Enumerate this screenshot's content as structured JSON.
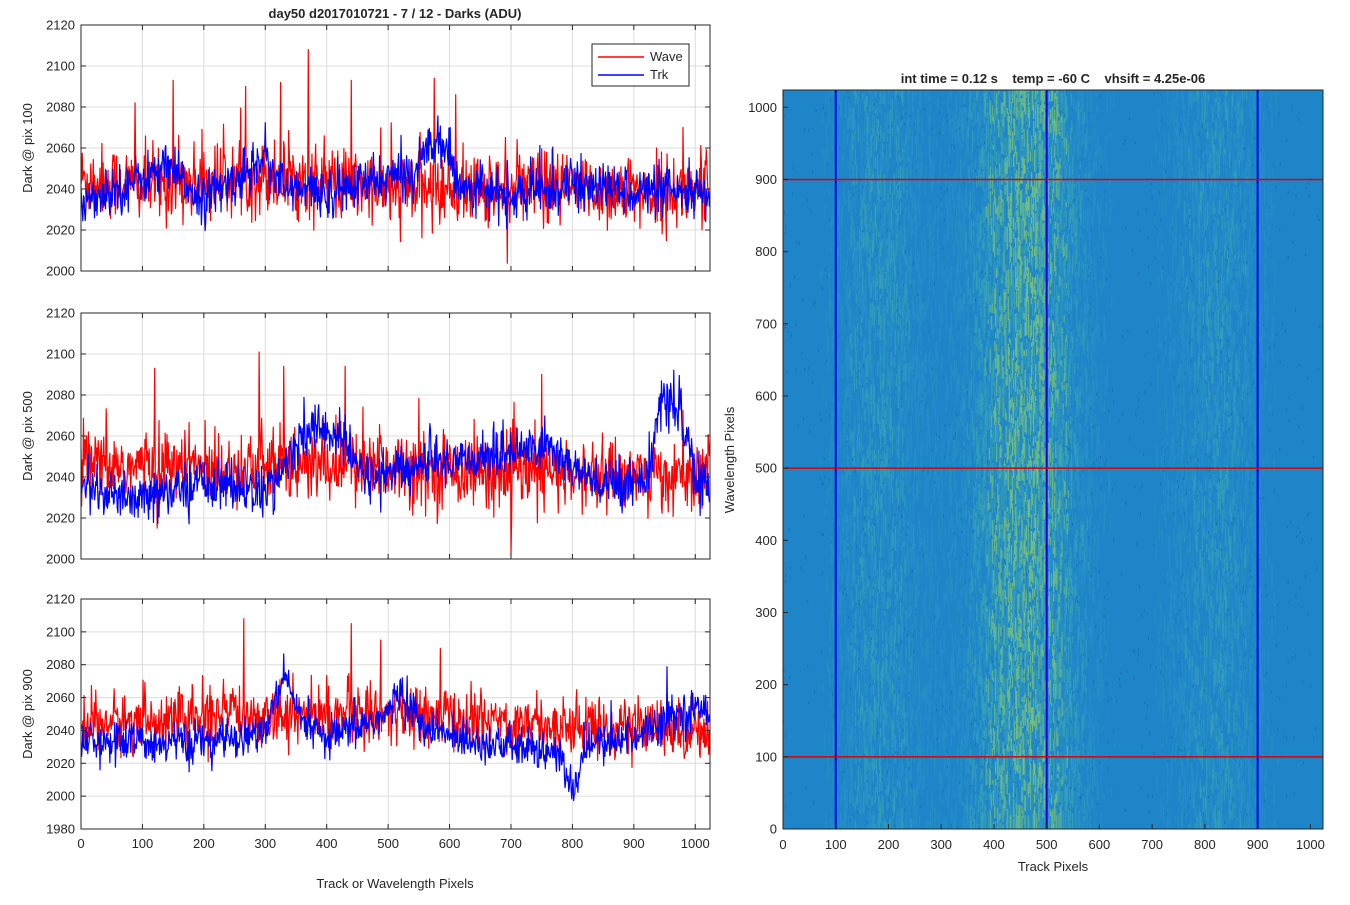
{
  "figure": {
    "colors": {
      "wave": "#ff0000",
      "trk": "#0000ff",
      "axis": "#262626",
      "grid": "#dcdcdc",
      "image_base": "#1e86c8",
      "image_bright": "#58c09a",
      "marker_line_v": "#0000e6",
      "marker_line_h": "#e00000"
    }
  },
  "chart_data": [
    {
      "type": "line",
      "title": "day50 d2017010721 - 7 / 12 - Darks (ADU)",
      "xlabel": "",
      "ylabel": "Dark @ pix 100",
      "xlim": [
        0,
        1024
      ],
      "ylim": [
        2000,
        2120
      ],
      "yticks": [
        2000,
        2020,
        2040,
        2060,
        2080,
        2100,
        2120
      ],
      "xticks": [
        0,
        100,
        200,
        300,
        400,
        500,
        600,
        700,
        800,
        900,
        1000
      ],
      "show_xtick_labels": false,
      "grid": true,
      "legend": {
        "placement": "top-right",
        "entries": [
          "Wave",
          "Trk"
        ]
      },
      "series": [
        {
          "name": "Wave",
          "color": "#ff0000",
          "baseline": 2042,
          "noise_sd": 9,
          "spikes": [
            [
              88,
              2082
            ],
            [
              150,
              2093
            ],
            [
              268,
              2090
            ],
            [
              325,
              2092
            ],
            [
              370,
              2108
            ],
            [
              440,
              2093
            ],
            [
              575,
              2094
            ],
            [
              610,
              2086
            ],
            [
              980,
              2070
            ]
          ],
          "segments": [
            [
              0,
              2045
            ],
            [
              100,
              2042
            ],
            [
              300,
              2046
            ],
            [
              500,
              2040
            ],
            [
              700,
              2040
            ],
            [
              1024,
              2038
            ]
          ]
        },
        {
          "name": "Trk",
          "color": "#0000ff",
          "baseline": 2036,
          "noise_sd": 6,
          "segments": [
            [
              0,
              2035
            ],
            [
              60,
              2040
            ],
            [
              140,
              2050
            ],
            [
              200,
              2035
            ],
            [
              270,
              2048
            ],
            [
              300,
              2058
            ],
            [
              330,
              2040
            ],
            [
              400,
              2038
            ],
            [
              540,
              2048
            ],
            [
              580,
              2068
            ],
            [
              620,
              2042
            ],
            [
              700,
              2036
            ],
            [
              800,
              2042
            ],
            [
              1024,
              2036
            ]
          ]
        }
      ]
    },
    {
      "type": "line",
      "title": "",
      "xlabel": "",
      "ylabel": "Dark @ pix 500",
      "xlim": [
        0,
        1024
      ],
      "ylim": [
        2000,
        2120
      ],
      "yticks": [
        2000,
        2020,
        2040,
        2060,
        2080,
        2100,
        2120
      ],
      "xticks": [
        0,
        100,
        200,
        300,
        400,
        500,
        600,
        700,
        800,
        900,
        1000
      ],
      "show_xtick_labels": false,
      "grid": true,
      "series": [
        {
          "name": "Wave",
          "color": "#ff0000",
          "baseline": 2044,
          "noise_sd": 9,
          "spikes": [
            [
              120,
              2093
            ],
            [
              290,
              2101
            ],
            [
              330,
              2094
            ],
            [
              430,
              2094
            ],
            [
              700,
              2002
            ],
            [
              750,
              2090
            ]
          ],
          "segments": [
            [
              0,
              2045
            ],
            [
              300,
              2045
            ],
            [
              500,
              2046
            ],
            [
              700,
              2042
            ],
            [
              1024,
              2040
            ]
          ]
        },
        {
          "name": "Trk",
          "color": "#0000ff",
          "baseline": 2036,
          "noise_sd": 6,
          "segments": [
            [
              0,
              2040
            ],
            [
              40,
              2030
            ],
            [
              100,
              2028
            ],
            [
              200,
              2038
            ],
            [
              300,
              2032
            ],
            [
              380,
              2065
            ],
            [
              420,
              2060
            ],
            [
              460,
              2040
            ],
            [
              600,
              2048
            ],
            [
              760,
              2055
            ],
            [
              840,
              2035
            ],
            [
              920,
              2040
            ],
            [
              950,
              2080
            ],
            [
              975,
              2070
            ],
            [
              1000,
              2040
            ],
            [
              1024,
              2034
            ]
          ]
        }
      ]
    },
    {
      "type": "line",
      "title": "",
      "xlabel": "Track or Wavelength Pixels",
      "ylabel": "Dark @ pix 900",
      "xlim": [
        0,
        1024
      ],
      "ylim": [
        1980,
        2120
      ],
      "yticks": [
        1980,
        2000,
        2020,
        2040,
        2060,
        2080,
        2100,
        2120
      ],
      "xticks": [
        0,
        100,
        200,
        300,
        400,
        500,
        600,
        700,
        800,
        900,
        1000
      ],
      "xtick_labels": [
        "0",
        "100",
        "200",
        "300",
        "400",
        "500",
        "600",
        "700",
        "800",
        "900",
        "1000"
      ],
      "show_xtick_labels": true,
      "grid": true,
      "series": [
        {
          "name": "Wave",
          "color": "#ff0000",
          "baseline": 2046,
          "noise_sd": 9,
          "spikes": [
            [
              265,
              2108
            ],
            [
              440,
              2105
            ],
            [
              585,
              2090
            ],
            [
              488,
              2095
            ]
          ],
          "segments": [
            [
              0,
              2044
            ],
            [
              300,
              2050
            ],
            [
              500,
              2050
            ],
            [
              700,
              2045
            ],
            [
              1024,
              2040
            ]
          ]
        },
        {
          "name": "Trk",
          "color": "#0000ff",
          "baseline": 2034,
          "noise_sd": 6,
          "segments": [
            [
              0,
              2034
            ],
            [
              200,
              2032
            ],
            [
              300,
              2040
            ],
            [
              330,
              2072
            ],
            [
              360,
              2045
            ],
            [
              400,
              2034
            ],
            [
              500,
              2050
            ],
            [
              520,
              2065
            ],
            [
              560,
              2040
            ],
            [
              700,
              2030
            ],
            [
              780,
              2025
            ],
            [
              800,
              2000
            ],
            [
              820,
              2030
            ],
            [
              900,
              2036
            ],
            [
              960,
              2050
            ],
            [
              1000,
              2052
            ],
            [
              1024,
              2055
            ]
          ]
        }
      ]
    },
    {
      "type": "heatmap",
      "title": "int time = 0.12 s    temp = -60 C    vhsift = 4.25e-06",
      "xlabel": "Track Pixels",
      "ylabel": "Wavelength Pixels",
      "xlim": [
        0,
        1024
      ],
      "ylim": [
        0,
        1024
      ],
      "xticks": [
        0,
        100,
        200,
        300,
        400,
        500,
        600,
        700,
        800,
        900,
        1000
      ],
      "xtick_labels": [
        "0",
        "100",
        "200",
        "300",
        "400",
        "500",
        "600",
        "700",
        "800",
        "900",
        "1000"
      ],
      "yticks": [
        0,
        100,
        200,
        300,
        400,
        500,
        600,
        700,
        800,
        900,
        1000
      ],
      "ytick_labels": [
        "0",
        "100",
        "200",
        "300",
        "400",
        "500",
        "600",
        "700",
        "800",
        "900",
        "1000"
      ],
      "vertical_markers": [
        100,
        500,
        900
      ],
      "horizontal_markers": [
        100,
        500,
        900
      ]
    }
  ]
}
